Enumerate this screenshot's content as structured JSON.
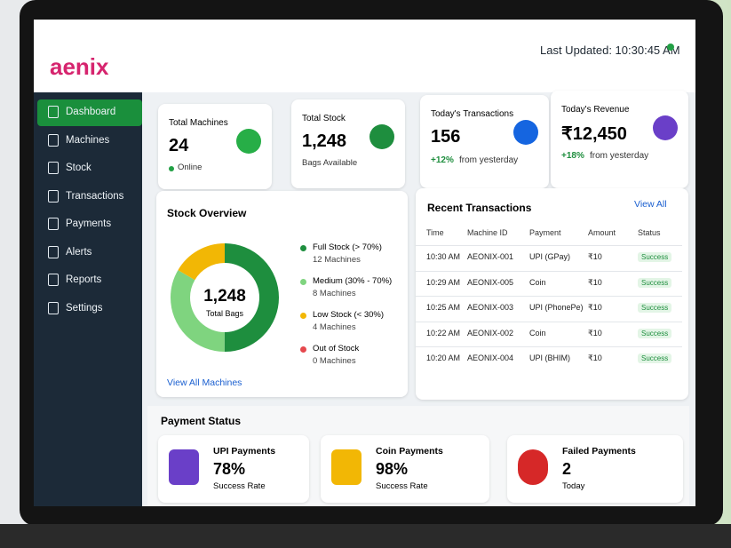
{
  "header": {
    "logo": "aenix",
    "last_updated": "Last Updated: 10:30:45 AM"
  },
  "sidebar": {
    "items": [
      "Dashboard",
      "Machines",
      "Stock",
      "Transactions",
      "Payments",
      "Alerts",
      "Reports",
      "Settings"
    ]
  },
  "cards": [
    {
      "title": "Total Machines",
      "value": "24",
      "note": "Online"
    },
    {
      "title": "Total Stock",
      "value": "1,248",
      "note": "Bags Available"
    },
    {
      "title": "Today's Transactions",
      "value": "156",
      "change": "+12%",
      "note": "from yesterday"
    },
    {
      "title": "Today's Revenue",
      "value": "₹12,450",
      "change": "+18%",
      "note": "from yesterday"
    }
  ],
  "stock_overview": {
    "title": "Stock Overview",
    "total": "1,248",
    "total_label": "Total Bags",
    "segments": [
      {
        "name": "Full Stock (> 70%)",
        "count": 12,
        "count_label": "12 Machines",
        "color": "#1e8e3e"
      },
      {
        "name": "Medium (30% - 70%)",
        "count": 8,
        "count_label": "8 Machines",
        "color": "#7fd47f"
      },
      {
        "name": "Low Stock (< 30%)",
        "count": 4,
        "count_label": "4 Machines",
        "color": "#f2b705"
      },
      {
        "name": "Out of Stock",
        "count": 0,
        "count_label": "0 Machines",
        "color": "#e5484d"
      }
    ],
    "link": "View All Machines"
  },
  "transactions": {
    "title": "Recent Transactions",
    "link": "View All",
    "columns": [
      "Time",
      "Machine ID",
      "Payment",
      "Amount",
      "Status"
    ],
    "rows": [
      [
        "10:30 AM",
        "AEONIX-001",
        "UPI (GPay)",
        "₹10",
        "Success"
      ],
      [
        "10:29 AM",
        "AEONIX-005",
        "Coin",
        "₹10",
        "Success"
      ],
      [
        "10:25 AM",
        "AEONIX-003",
        "UPI (PhonePe)",
        "₹10",
        "Success"
      ],
      [
        "10:22 AM",
        "AEONIX-002",
        "Coin",
        "₹10",
        "Success"
      ],
      [
        "10:20 AM",
        "AEONIX-004",
        "UPI (BHIM)",
        "₹10",
        "Success"
      ]
    ]
  },
  "payment_status": {
    "title": "Payment Status",
    "items": [
      {
        "title": "UPI Payments",
        "value": "78%",
        "note": "Success Rate"
      },
      {
        "title": "Coin Payments",
        "value": "98%",
        "note": "Success Rate"
      },
      {
        "title": "Failed Payments",
        "value": "2",
        "note": "Today"
      }
    ]
  }
}
